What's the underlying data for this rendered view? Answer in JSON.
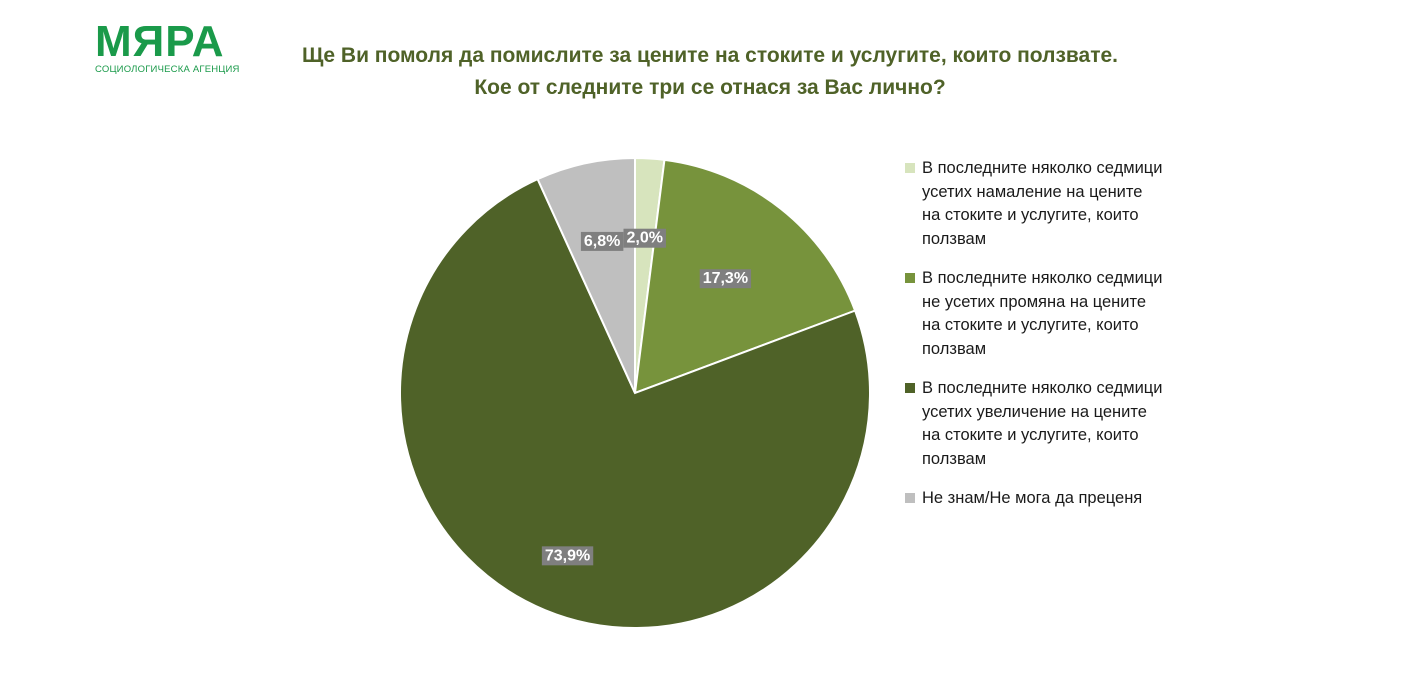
{
  "logo": {
    "word": "МЯРА",
    "subtitle": "СОЦИОЛОГИЧЕСКА АГЕНЦИЯ"
  },
  "title_lines": [
    "Ще Ви помоля да помислите за цените на стоките и услугите, които ползвате.",
    "Кое от следните три се отнася за Вас лично?"
  ],
  "chart_data": {
    "type": "pie",
    "start": "top",
    "direction": "clockwise",
    "slices": [
      {
        "label": "В последните няколко седмици усетих намаление на цените на стоките и услугите, които ползвам",
        "value": 2.0,
        "value_label": "2,0%",
        "color": "#d7e4bd"
      },
      {
        "label": "В последните няколко седмици не усетих промяна на цените на стоките и услугите, които ползвам",
        "value": 17.3,
        "value_label": "17,3%",
        "color": "#77933c"
      },
      {
        "label": "В последните няколко седмици усетих увеличение на цените на стоките и услугите, които ползвам",
        "value": 73.9,
        "value_label": "73,9%",
        "color": "#4f6228"
      },
      {
        "label": "Не знам/Не мога да преценя",
        "value": 6.8,
        "value_label": "6,8%",
        "color": "#bfbfbf"
      }
    ],
    "label_box_color": "#7f7f7f",
    "legend_position": "right"
  }
}
